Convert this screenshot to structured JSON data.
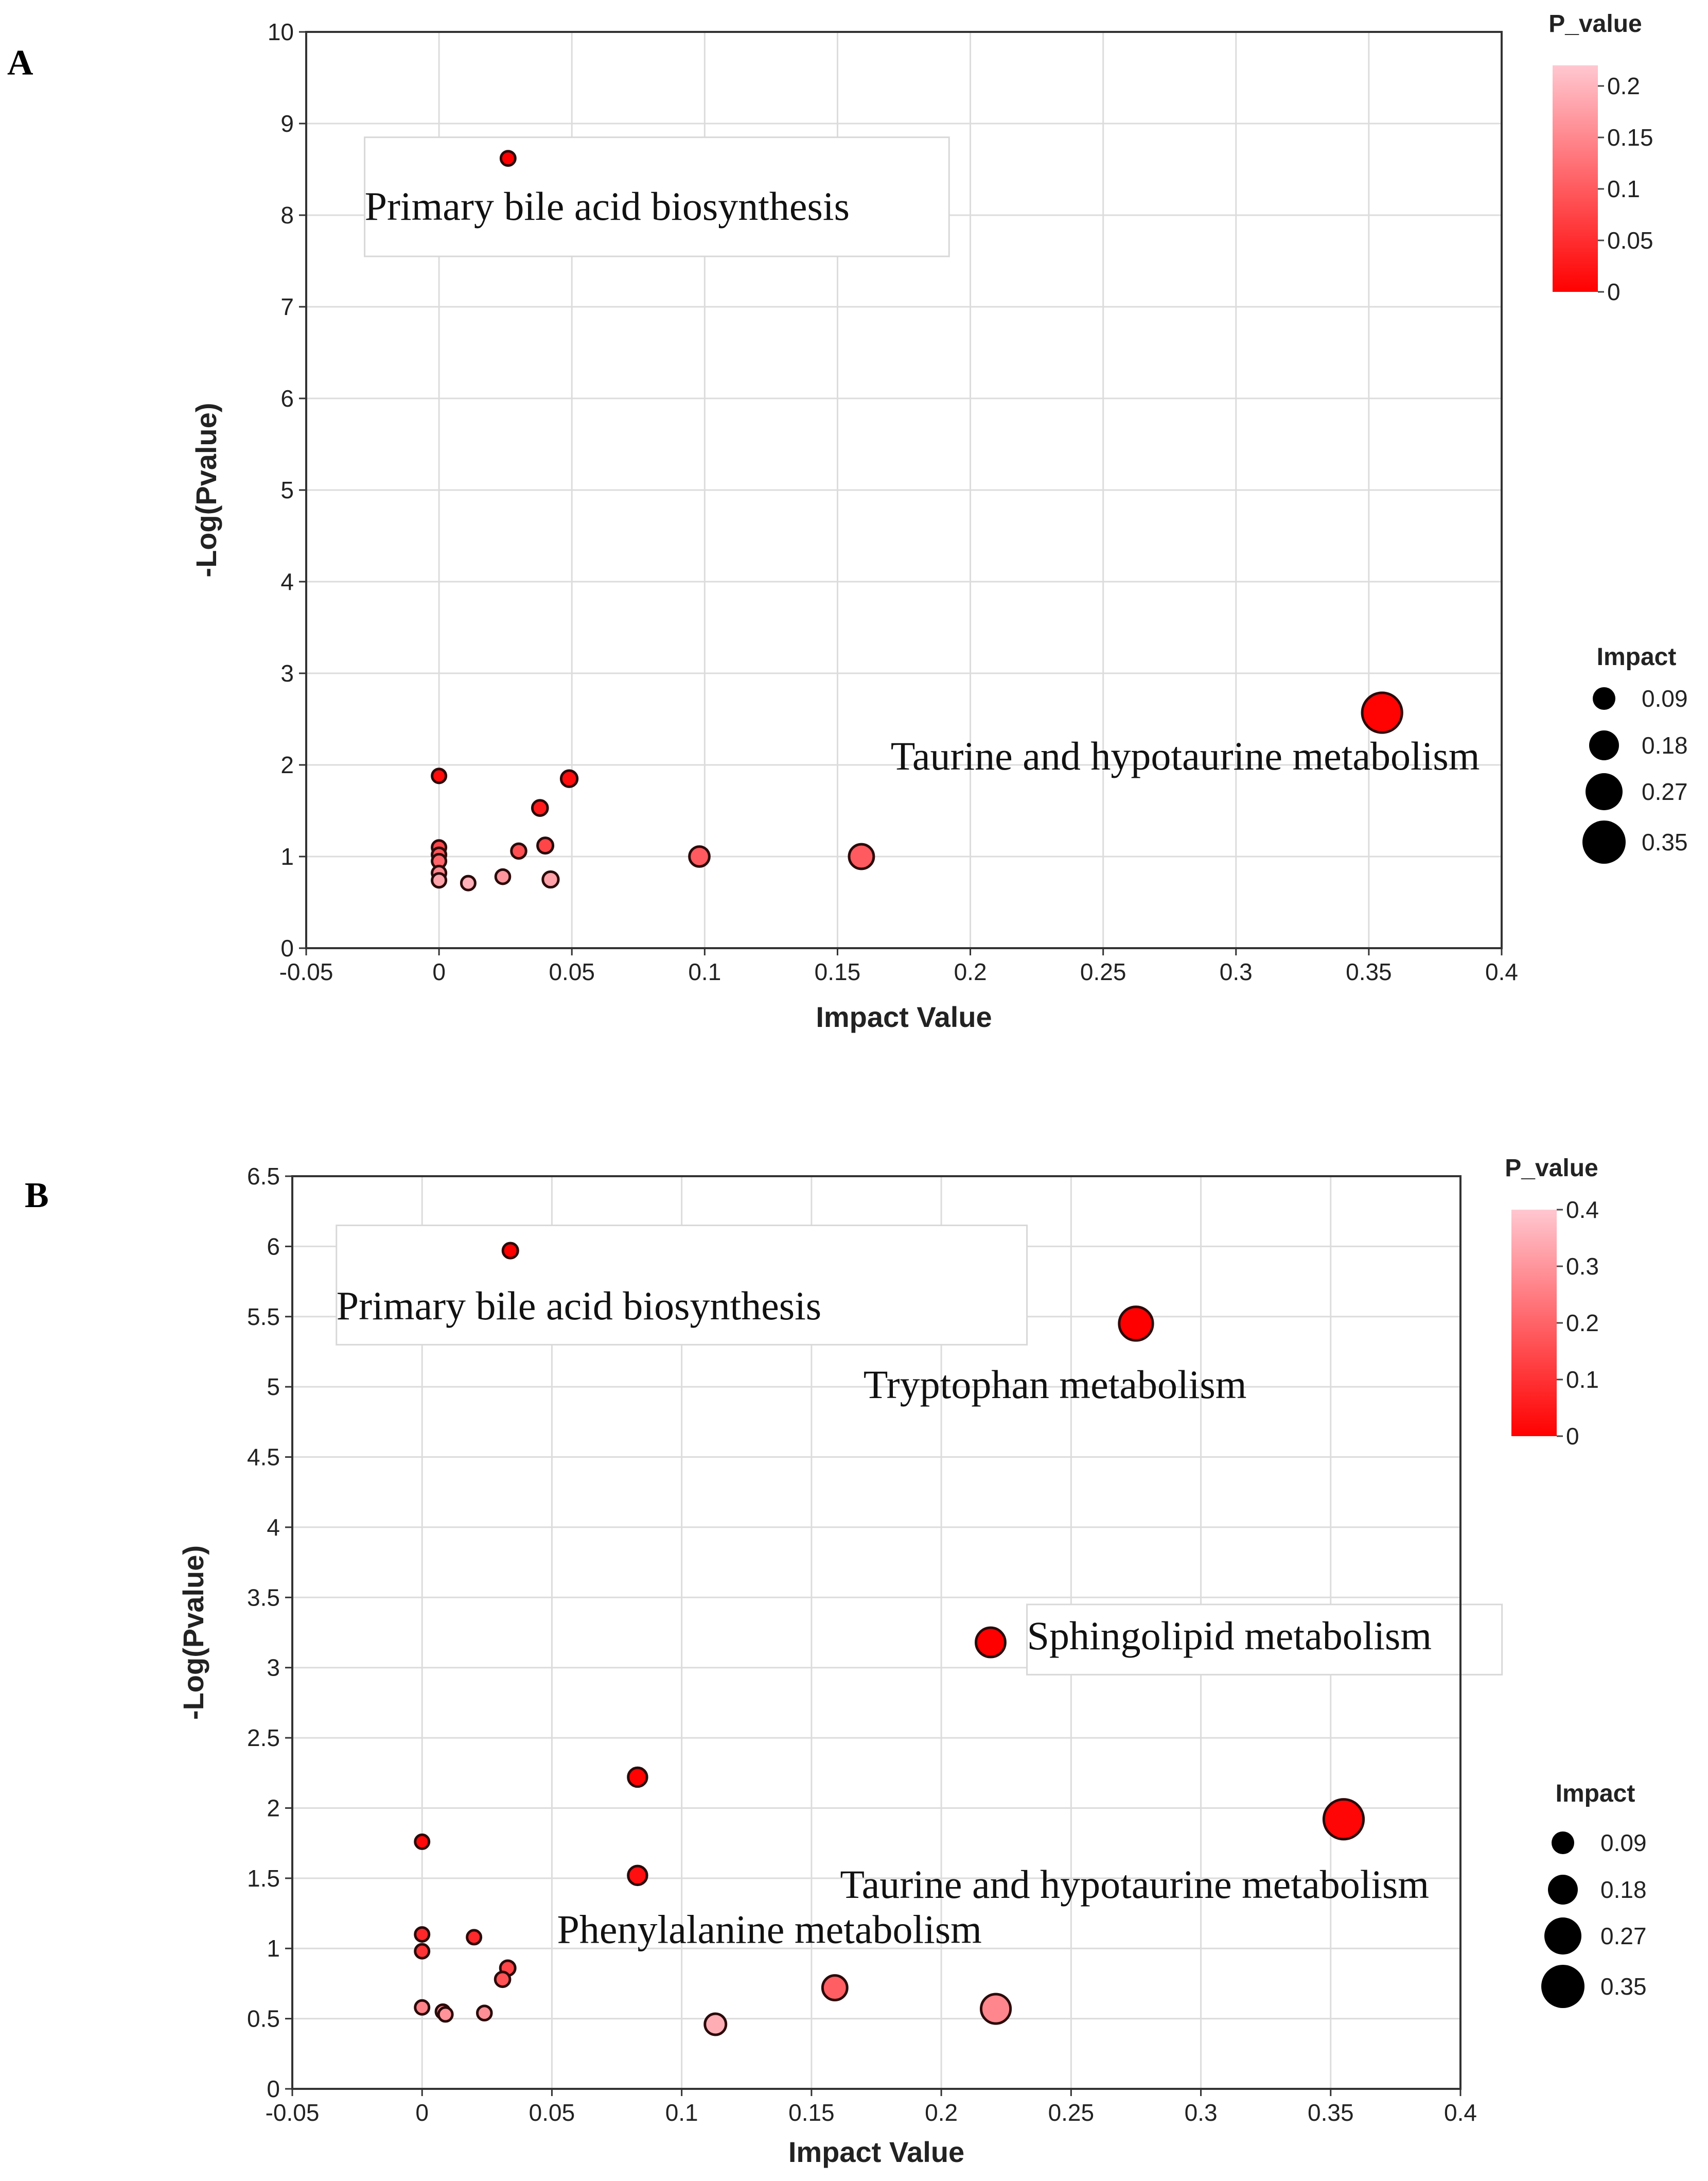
{
  "chart_data": [
    {
      "panel_label": "A",
      "type": "scatter",
      "xlabel": "Impact Value",
      "ylabel": "-Log(Pvalue)",
      "xlim": [
        -0.05,
        0.4
      ],
      "ylim": [
        0,
        10
      ],
      "xticks": [
        -0.05,
        0,
        0.05,
        0.1,
        0.15,
        0.2,
        0.25,
        0.3,
        0.35,
        0.4
      ],
      "xtick_labels": [
        "-0.05",
        "0",
        "0.05",
        "0.1",
        "0.15",
        "0.2",
        "0.25",
        "0.3",
        "0.35",
        "0.4"
      ],
      "yticks": [
        0,
        1,
        2,
        3,
        4,
        5,
        6,
        7,
        8,
        9,
        10
      ],
      "ytick_labels": [
        "0",
        "1",
        "2",
        "3",
        "4",
        "5",
        "6",
        "7",
        "8",
        "9",
        "10"
      ],
      "grid": true,
      "color_legend": {
        "title": "P_value",
        "range": [
          0,
          0.22
        ],
        "ticks": [
          0,
          0.05,
          0.1,
          0.15,
          0.2
        ],
        "tick_labels": [
          "0",
          "0.05",
          "0.1",
          "0.15",
          "0.2"
        ],
        "low_color": "#ff0000",
        "high_color": "#ffc7d0"
      },
      "size_legend": {
        "title": "Impact",
        "values": [
          0.09,
          0.18,
          0.27,
          0.35
        ],
        "labels": [
          "0.09",
          "0.18",
          "0.27",
          "0.35"
        ]
      },
      "points": [
        {
          "x": 0.026,
          "y": 8.62,
          "p": 0.0
        },
        {
          "x": 0.355,
          "y": 2.57,
          "p": 0.003
        },
        {
          "x": 0.0,
          "y": 1.88,
          "p": 0.013
        },
        {
          "x": 0.049,
          "y": 1.85,
          "p": 0.014
        },
        {
          "x": 0.038,
          "y": 1.53,
          "p": 0.03
        },
        {
          "x": 0.04,
          "y": 1.12,
          "p": 0.076
        },
        {
          "x": 0.03,
          "y": 1.06,
          "p": 0.087
        },
        {
          "x": 0.0,
          "y": 1.1,
          "p": 0.079
        },
        {
          "x": 0.0,
          "y": 1.02,
          "p": 0.096
        },
        {
          "x": 0.0,
          "y": 0.95,
          "p": 0.112
        },
        {
          "x": 0.098,
          "y": 1.0,
          "p": 0.1
        },
        {
          "x": 0.159,
          "y": 1.0,
          "p": 0.1
        },
        {
          "x": 0.0,
          "y": 0.82,
          "p": 0.15
        },
        {
          "x": 0.0,
          "y": 0.74,
          "p": 0.18
        },
        {
          "x": 0.024,
          "y": 0.78,
          "p": 0.166
        },
        {
          "x": 0.042,
          "y": 0.75,
          "p": 0.178
        },
        {
          "x": 0.011,
          "y": 0.71,
          "p": 0.195
        }
      ],
      "annotations": [
        {
          "text": "Primary bile acid biosynthesis",
          "x": -0.028,
          "y": 7.95,
          "boxed": true,
          "box_x": [
            -0.028,
            0.192
          ],
          "box_y": [
            7.55,
            8.85
          ]
        },
        {
          "text": "Taurine and hypotaurine metabolism",
          "x": 0.17,
          "y": 1.95,
          "boxed": false
        }
      ]
    },
    {
      "panel_label": "B",
      "type": "scatter",
      "xlabel": "Impact Value",
      "ylabel": "-Log(Pvalue)",
      "xlim": [
        -0.05,
        0.4
      ],
      "ylim": [
        0,
        6.5
      ],
      "xticks": [
        -0.05,
        0,
        0.05,
        0.1,
        0.15,
        0.2,
        0.25,
        0.3,
        0.35,
        0.4
      ],
      "xtick_labels": [
        "-0.05",
        "0",
        "0.05",
        "0.1",
        "0.15",
        "0.2",
        "0.25",
        "0.3",
        "0.35",
        "0.4"
      ],
      "yticks": [
        0,
        0.5,
        1,
        1.5,
        2,
        2.5,
        3,
        3.5,
        4,
        4.5,
        5,
        5.5,
        6,
        6.5
      ],
      "ytick_labels": [
        "0",
        "0.5",
        "1",
        "1.5",
        "2",
        "2.5",
        "3",
        "3.5",
        "4",
        "4.5",
        "5",
        "5.5",
        "6",
        "6.5"
      ],
      "grid": true,
      "color_legend": {
        "title": "P_value",
        "range": [
          0,
          0.4
        ],
        "ticks": [
          0,
          0.1,
          0.2,
          0.3,
          0.4
        ],
        "tick_labels": [
          "0",
          "0.1",
          "0.2",
          "0.3",
          "0.4"
        ],
        "low_color": "#ff0000",
        "high_color": "#ffc7d0"
      },
      "size_legend": {
        "title": "Impact",
        "values": [
          0.09,
          0.18,
          0.27,
          0.35
        ],
        "labels": [
          "0.09",
          "0.18",
          "0.27",
          "0.35"
        ]
      },
      "points": [
        {
          "x": 0.034,
          "y": 5.97,
          "p": 0.0
        },
        {
          "x": 0.275,
          "y": 5.45,
          "p": 0.0
        },
        {
          "x": 0.219,
          "y": 3.18,
          "p": 0.001
        },
        {
          "x": 0.355,
          "y": 1.92,
          "p": 0.012
        },
        {
          "x": 0.083,
          "y": 2.22,
          "p": 0.006
        },
        {
          "x": 0.0,
          "y": 1.76,
          "p": 0.017
        },
        {
          "x": 0.083,
          "y": 1.52,
          "p": 0.03
        },
        {
          "x": 0.0,
          "y": 1.1,
          "p": 0.079
        },
        {
          "x": 0.02,
          "y": 1.08,
          "p": 0.083
        },
        {
          "x": 0.0,
          "y": 0.98,
          "p": 0.105
        },
        {
          "x": 0.033,
          "y": 0.86,
          "p": 0.138
        },
        {
          "x": 0.031,
          "y": 0.78,
          "p": 0.166
        },
        {
          "x": 0.159,
          "y": 0.72,
          "p": 0.191
        },
        {
          "x": 0.0,
          "y": 0.58,
          "p": 0.263
        },
        {
          "x": 0.008,
          "y": 0.55,
          "p": 0.282
        },
        {
          "x": 0.009,
          "y": 0.53,
          "p": 0.295
        },
        {
          "x": 0.024,
          "y": 0.54,
          "p": 0.288
        },
        {
          "x": 0.221,
          "y": 0.57,
          "p": 0.269
        },
        {
          "x": 0.113,
          "y": 0.46,
          "p": 0.347
        }
      ],
      "annotations": [
        {
          "text": "Primary bile acid biosynthesis",
          "x": -0.033,
          "y": 5.48,
          "boxed": true,
          "box_x": [
            -0.033,
            0.233
          ],
          "box_y": [
            5.3,
            6.15
          ]
        },
        {
          "text": "Tryptophan metabolism",
          "x": 0.17,
          "y": 4.92,
          "boxed": false
        },
        {
          "text": "Sphingolipid metabolism",
          "x": 0.233,
          "y": 3.13,
          "boxed": true,
          "box_x": [
            0.233,
            0.416
          ],
          "box_y": [
            2.95,
            3.45
          ]
        },
        {
          "text": "Taurine and hypotaurine metabolism",
          "x": 0.161,
          "y": 1.36,
          "boxed": false
        },
        {
          "text": "Phenylalanine metabolism",
          "x": 0.052,
          "y": 1.04,
          "boxed": false
        }
      ]
    }
  ]
}
